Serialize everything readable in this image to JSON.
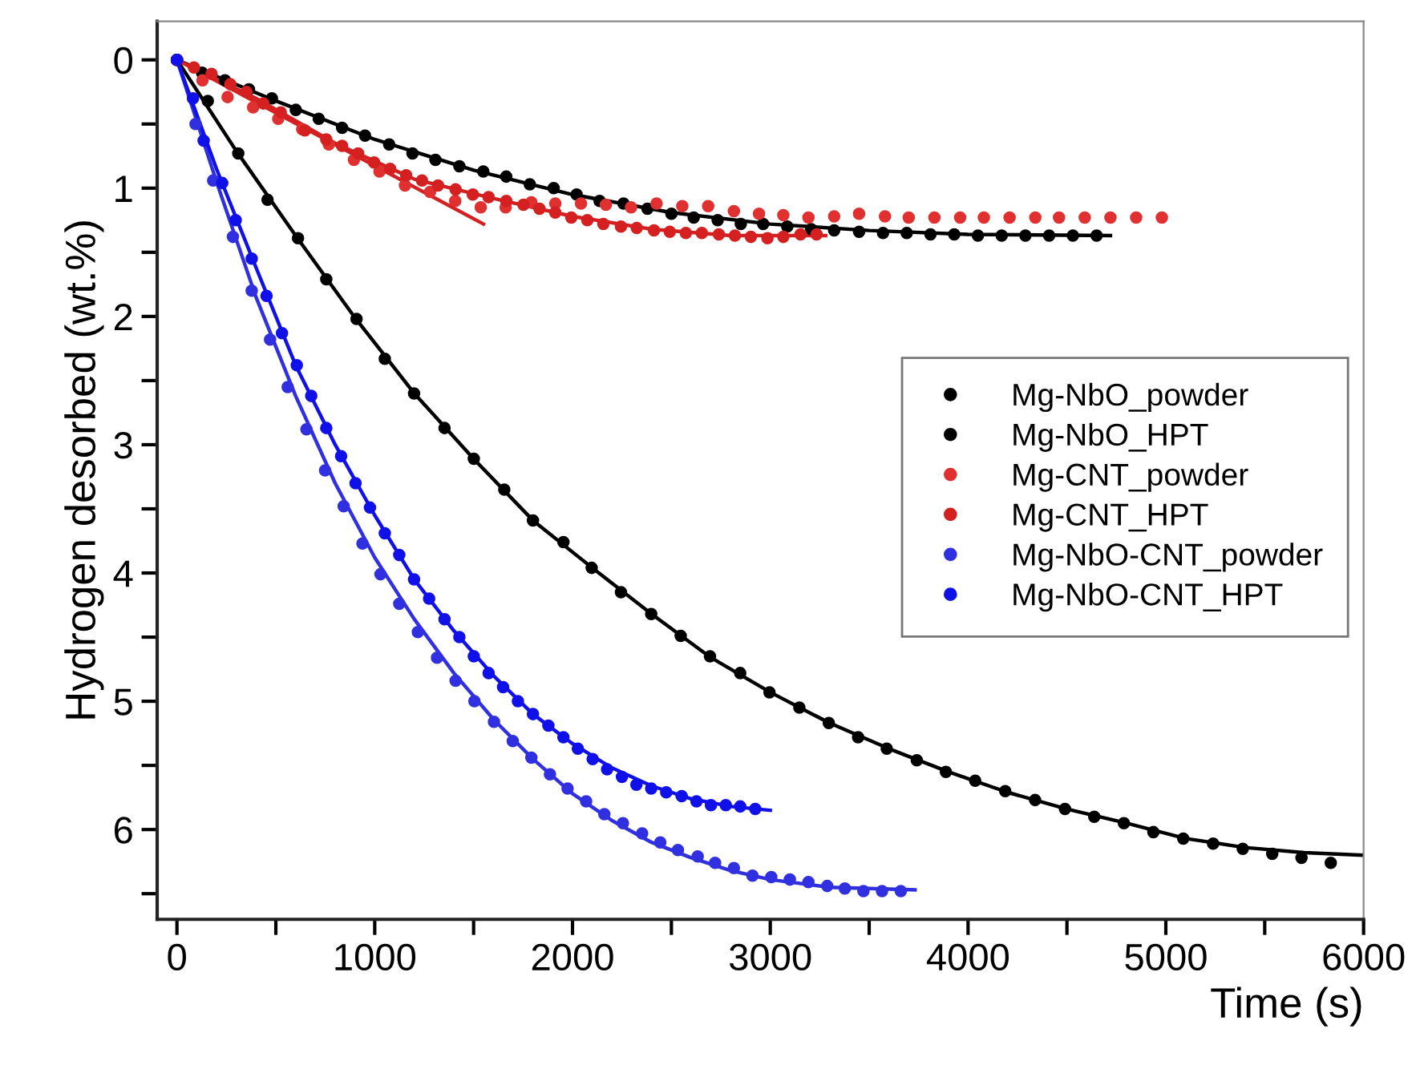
{
  "chart_data": {
    "type": "scatter",
    "xlabel": "Time (s)",
    "ylabel": "Hydrogen desorbed (wt.%)",
    "xlim": [
      -100,
      6000
    ],
    "ylim": [
      6.7,
      -0.3
    ],
    "xticks": [
      0,
      {
        "value": 500,
        "label": null
      },
      1000,
      {
        "value": 1500,
        "label": null
      },
      2000,
      {
        "value": 2500,
        "label": null
      },
      3000,
      {
        "value": 3500,
        "label": null
      },
      4000,
      {
        "value": 4500,
        "label": null
      },
      5000,
      {
        "value": 5500,
        "label": null
      },
      6000
    ],
    "yticks": [
      0,
      {
        "value": 0.5,
        "label": null
      },
      1,
      {
        "value": 1.5,
        "label": null
      },
      2,
      {
        "value": 2.5,
        "label": null
      },
      3,
      {
        "value": 3.5,
        "label": null
      },
      4,
      {
        "value": 4.5,
        "label": null
      },
      5,
      {
        "value": 5.5,
        "label": null
      },
      6,
      {
        "value": 6.5,
        "label": null
      }
    ],
    "grid": false,
    "legend": "right",
    "marker": "circle",
    "series": [
      {
        "name": "Mg-NbO_powder",
        "color": "#000000",
        "x": [
          0,
          127,
          243,
          364,
          480,
          601,
          717,
          835,
          951,
          1073,
          1191,
          1307,
          1428,
          1549,
          1665,
          1784,
          1905,
          2021,
          2137,
          2258,
          2379,
          2500,
          2613,
          2734,
          2851,
          2964,
          3086,
          3207,
          3323,
          3449,
          3570,
          3690,
          3810,
          3930,
          4050,
          4170,
          4290,
          4410,
          4530,
          4650
        ],
        "values": [
          0,
          0.1,
          0.16,
          0.23,
          0.3,
          0.39,
          0.46,
          0.53,
          0.59,
          0.66,
          0.73,
          0.78,
          0.83,
          0.87,
          0.91,
          0.97,
          1.0,
          1.05,
          1.1,
          1.12,
          1.16,
          1.2,
          1.23,
          1.25,
          1.28,
          1.28,
          1.3,
          1.32,
          1.33,
          1.34,
          1.35,
          1.35,
          1.36,
          1.36,
          1.37,
          1.37,
          1.37,
          1.37,
          1.37,
          1.37
        ]
      },
      {
        "name": "Mg-NbO_HPT",
        "color": "#000000",
        "x": [
          0,
          156,
          310,
          458,
          612,
          755,
          908,
          1051,
          1199,
          1353,
          1501,
          1655,
          1800,
          1954,
          2097,
          2245,
          2398,
          2547,
          2695,
          2848,
          2996,
          3147,
          3296,
          3444,
          3589,
          3741,
          3888,
          4036,
          4188,
          4339,
          4490,
          4638,
          4788,
          4937,
          5088,
          5239,
          5389,
          5538,
          5686,
          5834
        ],
        "values": [
          0,
          0.32,
          0.73,
          1.09,
          1.39,
          1.71,
          2.02,
          2.33,
          2.6,
          2.87,
          3.11,
          3.35,
          3.59,
          3.76,
          3.96,
          4.15,
          4.32,
          4.49,
          4.65,
          4.78,
          4.93,
          5.05,
          5.17,
          5.28,
          5.37,
          5.46,
          5.55,
          5.62,
          5.7,
          5.77,
          5.84,
          5.9,
          5.95,
          6.02,
          6.07,
          6.11,
          6.15,
          6.19,
          6.22,
          6.26
        ]
      },
      {
        "name": "Mg-CNT_powder",
        "color": "#e03030",
        "x": [
          0,
          129,
          256,
          385,
          512,
          633,
          768,
          895,
          1024,
          1153,
          1280,
          1407,
          1536,
          1662,
          1792,
          1913,
          2043,
          2169,
          2296,
          2425,
          2555,
          2686,
          2816,
          2943,
          3066,
          3193,
          3323,
          3449,
          3580,
          3700,
          3830,
          3960,
          4080,
          4210,
          4340,
          4460,
          4590,
          4720,
          4850,
          4980
        ],
        "values": [
          0,
          0.16,
          0.29,
          0.37,
          0.46,
          0.54,
          0.66,
          0.78,
          0.87,
          0.98,
          1.03,
          1.1,
          1.15,
          1.15,
          1.11,
          1.12,
          1.12,
          1.13,
          1.15,
          1.12,
          1.14,
          1.14,
          1.18,
          1.2,
          1.21,
          1.23,
          1.22,
          1.2,
          1.22,
          1.23,
          1.23,
          1.23,
          1.23,
          1.23,
          1.23,
          1.23,
          1.23,
          1.23,
          1.23,
          1.23
        ]
      },
      {
        "name": "Mg-CNT_HPT",
        "color": "#d42020",
        "x": [
          0,
          86,
          175,
          270,
          351,
          437,
          525,
          647,
          755,
          835,
          916,
          997,
          1078,
          1159,
          1239,
          1320,
          1409,
          1496,
          1576,
          1665,
          1752,
          1833,
          1913,
          1994,
          2075,
          2156,
          2245,
          2325,
          2412,
          2492,
          2573,
          2654,
          2740,
          2821,
          2902,
          2986,
          3066,
          3153,
          3234
        ],
        "values": [
          0,
          0.06,
          0.11,
          0.19,
          0.25,
          0.34,
          0.41,
          0.55,
          0.62,
          0.67,
          0.73,
          0.8,
          0.85,
          0.9,
          0.94,
          0.98,
          1.01,
          1.05,
          1.07,
          1.1,
          1.13,
          1.16,
          1.19,
          1.23,
          1.25,
          1.28,
          1.3,
          1.31,
          1.33,
          1.34,
          1.35,
          1.35,
          1.36,
          1.37,
          1.38,
          1.39,
          1.38,
          1.36,
          1.36
        ]
      },
      {
        "name": "Mg-NbO-CNT_powder",
        "color": "#3030e0",
        "x": [
          0,
          94,
          183,
          283,
          378,
          471,
          560,
          655,
          749,
          843,
          938,
          1029,
          1124,
          1218,
          1315,
          1409,
          1504,
          1603,
          1698,
          1792,
          1886,
          1975,
          2069,
          2161,
          2255,
          2352,
          2444,
          2533,
          2633,
          2721,
          2816,
          2910,
          3005,
          3099,
          3193,
          3288,
          3377,
          3471,
          3565,
          3660
        ],
        "values": [
          0,
          0.5,
          0.94,
          1.38,
          1.8,
          2.18,
          2.55,
          2.88,
          3.2,
          3.48,
          3.77,
          4.01,
          4.24,
          4.46,
          4.66,
          4.84,
          5.0,
          5.16,
          5.31,
          5.44,
          5.57,
          5.68,
          5.78,
          5.88,
          5.95,
          6.03,
          6.1,
          6.16,
          6.21,
          6.26,
          6.3,
          6.36,
          6.37,
          6.39,
          6.41,
          6.44,
          6.46,
          6.48,
          6.48,
          6.48
        ]
      },
      {
        "name": "Mg-NbO-CNT_HPT",
        "color": "#1010e8",
        "x": [
          0,
          81,
          135,
          229,
          297,
          378,
          453,
          531,
          606,
          679,
          755,
          830,
          903,
          976,
          1051,
          1124,
          1199,
          1275,
          1353,
          1428,
          1501,
          1576,
          1649,
          1724,
          1800,
          1878,
          1954,
          2027,
          2102,
          2175,
          2250,
          2323,
          2398,
          2474,
          2552,
          2627,
          2700,
          2775,
          2848,
          2924
        ],
        "values": [
          0,
          0.3,
          0.63,
          0.96,
          1.25,
          1.55,
          1.84,
          2.13,
          2.38,
          2.62,
          2.87,
          3.09,
          3.3,
          3.49,
          3.69,
          3.86,
          4.05,
          4.2,
          4.36,
          4.5,
          4.65,
          4.78,
          4.89,
          5.0,
          5.1,
          5.19,
          5.28,
          5.37,
          5.45,
          5.53,
          5.59,
          5.65,
          5.68,
          5.71,
          5.74,
          5.78,
          5.81,
          5.81,
          5.82,
          5.84
        ]
      },
      {
        "type": "line",
        "marker": "none",
        "color": "#000000",
        "x": [
          0,
          500,
          1000,
          1500,
          2000,
          2500,
          3000,
          3500,
          4000,
          4720
        ],
        "values": [
          0,
          0.32,
          0.62,
          0.86,
          1.05,
          1.19,
          1.28,
          1.33,
          1.36,
          1.37
        ]
      },
      {
        "type": "line",
        "marker": "none",
        "color": "#000000",
        "x": [
          0,
          300,
          600,
          900,
          1200,
          1500,
          1800,
          2100,
          2400,
          2700,
          3000,
          3300,
          3600,
          3900,
          4200,
          4500,
          4800,
          5100,
          5400,
          5700,
          6000
        ],
        "values": [
          0,
          0.71,
          1.37,
          2.01,
          2.6,
          3.11,
          3.59,
          3.96,
          4.32,
          4.66,
          4.93,
          5.17,
          5.37,
          5.55,
          5.71,
          5.84,
          5.95,
          6.07,
          6.14,
          6.18,
          6.2
        ]
      },
      {
        "type": "line",
        "marker": "none",
        "color": "#d42020",
        "x": [
          0,
          400,
          800,
          1200,
          1600,
          2000,
          2400,
          2800,
          3280
        ],
        "values": [
          0,
          0.3,
          0.65,
          0.93,
          1.08,
          1.22,
          1.32,
          1.37,
          1.37
        ]
      },
      {
        "type": "line",
        "marker": "none",
        "color": "#d42020",
        "x": [
          0,
          1550
        ],
        "values": [
          0,
          1.28
        ]
      },
      {
        "type": "line",
        "marker": "none",
        "color": "#3030e0",
        "x": [
          0,
          200,
          400,
          600,
          800,
          1000,
          1200,
          1400,
          1600,
          1800,
          2000,
          2200,
          2400,
          2600,
          2800,
          3000,
          3300,
          3732
        ],
        "values": [
          0,
          0.95,
          1.85,
          2.62,
          3.3,
          3.88,
          4.36,
          4.78,
          5.14,
          5.45,
          5.72,
          5.93,
          6.1,
          6.22,
          6.32,
          6.39,
          6.45,
          6.47
        ]
      },
      {
        "type": "line",
        "marker": "none",
        "color": "#1010e8",
        "x": [
          0,
          200,
          400,
          600,
          800,
          1000,
          1200,
          1400,
          1600,
          1800,
          2000,
          2200,
          2400,
          2600,
          2800,
          3000
        ],
        "values": [
          0,
          0.85,
          1.62,
          2.38,
          3.0,
          3.55,
          4.05,
          4.45,
          4.8,
          5.1,
          5.33,
          5.52,
          5.66,
          5.76,
          5.82,
          5.85
        ]
      }
    ]
  }
}
